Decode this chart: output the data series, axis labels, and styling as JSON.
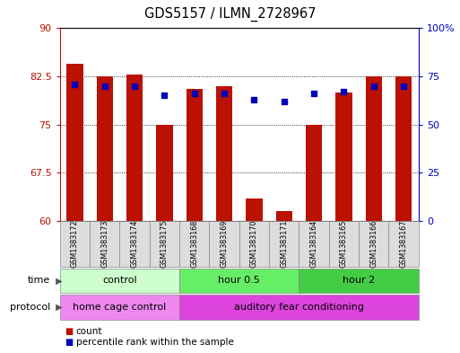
{
  "title": "GDS5157 / ILMN_2728967",
  "samples": [
    "GSM1383172",
    "GSM1383173",
    "GSM1383174",
    "GSM1383175",
    "GSM1383168",
    "GSM1383169",
    "GSM1383170",
    "GSM1383171",
    "GSM1383164",
    "GSM1383165",
    "GSM1383166",
    "GSM1383167"
  ],
  "bar_values": [
    84.5,
    82.5,
    82.8,
    75.0,
    80.5,
    81.0,
    63.5,
    61.5,
    75.0,
    80.0,
    82.5,
    82.5
  ],
  "dot_values_pct": [
    71,
    70,
    70,
    65,
    66,
    66,
    63,
    62,
    66,
    67,
    70,
    70
  ],
  "ylim_left": [
    60,
    90
  ],
  "ylim_right": [
    0,
    100
  ],
  "yticks_left": [
    60,
    67.5,
    75,
    82.5,
    90
  ],
  "ytick_labels_left": [
    "60",
    "67.5",
    "75",
    "82.5",
    "90"
  ],
  "yticks_right": [
    0,
    25,
    50,
    75,
    100
  ],
  "ytick_labels_right": [
    "0",
    "25",
    "50",
    "75",
    "100%"
  ],
  "bar_color": "#bb1100",
  "dot_color": "#0000bb",
  "bar_width": 0.55,
  "time_groups": [
    {
      "label": "control",
      "start": 0,
      "end": 3,
      "color": "#ccffcc"
    },
    {
      "label": "hour 0.5",
      "start": 4,
      "end": 7,
      "color": "#66ee66"
    },
    {
      "label": "hour 2",
      "start": 8,
      "end": 11,
      "color": "#44cc44"
    }
  ],
  "protocol_groups": [
    {
      "label": "home cage control",
      "start": 0,
      "end": 3,
      "color": "#ee88ee"
    },
    {
      "label": "auditory fear conditioning",
      "start": 4,
      "end": 11,
      "color": "#dd44dd"
    }
  ],
  "legend_count_label": "count",
  "legend_percentile_label": "percentile rank within the sample",
  "background_color": "#ffffff",
  "time_label": "time",
  "protocol_label": "protocol",
  "sample_box_color": "#dddddd",
  "border_color": "#888888"
}
